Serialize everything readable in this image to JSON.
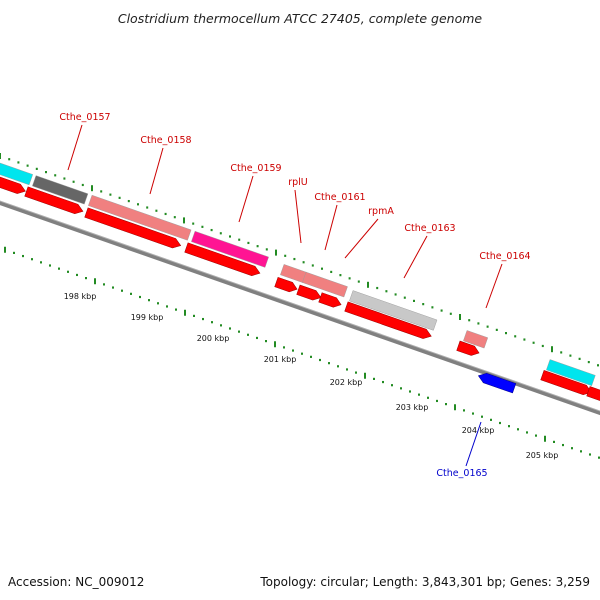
{
  "title": "Clostridium thermocellum ATCC 27405, complete genome",
  "footer": {
    "accession": "Accession: NC_009012",
    "topology": "Topology: circular; Length: 3,843,301 bp; Genes: 3,259"
  },
  "colors": {
    "forward_label": "#cc0000",
    "reverse_label": "#0000cc",
    "cds_forward": "#ff0000",
    "cds_reverse": "#0000ff",
    "backbone": "#808080",
    "tick": "#228b22"
  },
  "scale_ticks": [
    {
      "label": "198 kbp"
    },
    {
      "label": "199 kbp"
    },
    {
      "label": "200 kbp"
    },
    {
      "label": "201 kbp"
    },
    {
      "label": "202 kbp"
    },
    {
      "label": "203 kbp"
    },
    {
      "label": "204 kbp"
    },
    {
      "label": "205 kbp"
    }
  ],
  "gene_labels": [
    {
      "text": "Cthe_0157",
      "strand": "forward"
    },
    {
      "text": "Cthe_0158",
      "strand": "forward"
    },
    {
      "text": "Cthe_0159",
      "strand": "forward"
    },
    {
      "text": "rplU",
      "strand": "forward"
    },
    {
      "text": "Cthe_0161",
      "strand": "forward"
    },
    {
      "text": "rpmA",
      "strand": "forward"
    },
    {
      "text": "Cthe_0163",
      "strand": "forward"
    },
    {
      "text": "Cthe_0164",
      "strand": "forward"
    },
    {
      "text": "Cthe_0165",
      "strand": "reverse"
    }
  ],
  "cog_bars": [
    {
      "color": "#00e5ee"
    },
    {
      "color": "#666666"
    },
    {
      "color": "#f08080"
    },
    {
      "color": "#ff1493"
    },
    {
      "color": "#f08080"
    },
    {
      "color": "#f08080"
    },
    {
      "color": "#c8c8c8"
    },
    {
      "color": "#f08080"
    },
    {
      "color": "#00e5ee"
    }
  ]
}
